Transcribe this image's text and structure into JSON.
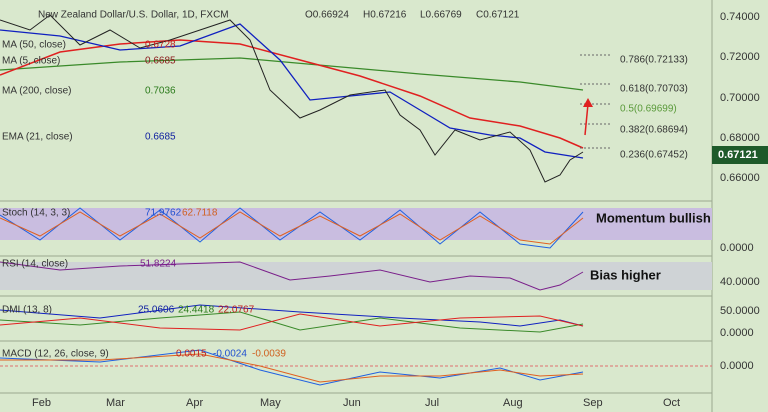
{
  "header": {
    "title": "New Zealand Dollar/U.S. Dollar, 1D, FXCM",
    "open": "O0.66924",
    "high": "H0.67216",
    "low": "L0.66769",
    "close": "C0.67121"
  },
  "indicators": {
    "ma50": {
      "label": "MA (50, close)",
      "value": "0.6728"
    },
    "ma5": {
      "label": "MA (5, close)",
      "value": "0.6685"
    },
    "ma200": {
      "label": "MA (200, close)",
      "value": "0.7036"
    },
    "ema21": {
      "label": "EMA (21, close)",
      "value": "0.6685"
    }
  },
  "fib": [
    "0.786(0.72133)",
    "0.618(0.70703)",
    "0.5(0.69699)",
    "0.382(0.68694)",
    "0.236(0.67452)"
  ],
  "price_axis": [
    "0.74000",
    "0.72000",
    "0.70000",
    "0.68000",
    "0.66000"
  ],
  "last_price": "0.67121",
  "stoch": {
    "label": "Stoch (14, 3, 3)",
    "k": "71.9762",
    "d": "62.7118",
    "axis": "0.0000",
    "note": "Momentum bullish"
  },
  "rsi": {
    "label": "RSI (14, close)",
    "value": "51.8224",
    "axis": "40.0000",
    "note": "Bias higher"
  },
  "dmi": {
    "label": "DMI (13, 8)",
    "adx": "25.0606",
    "plus": "24.4418",
    "minus": "22.0767",
    "axis": [
      "50.0000",
      "0.0000"
    ]
  },
  "macd": {
    "label": "MACD (12, 26, close, 9)",
    "hist": "0.0015",
    "macd": "-0.0024",
    "signal": "-0.0039",
    "axis": "0.0000"
  },
  "months": [
    "Feb",
    "Mar",
    "Apr",
    "May",
    "Jun",
    "Jul",
    "Aug",
    "Sep",
    "Oct"
  ]
}
